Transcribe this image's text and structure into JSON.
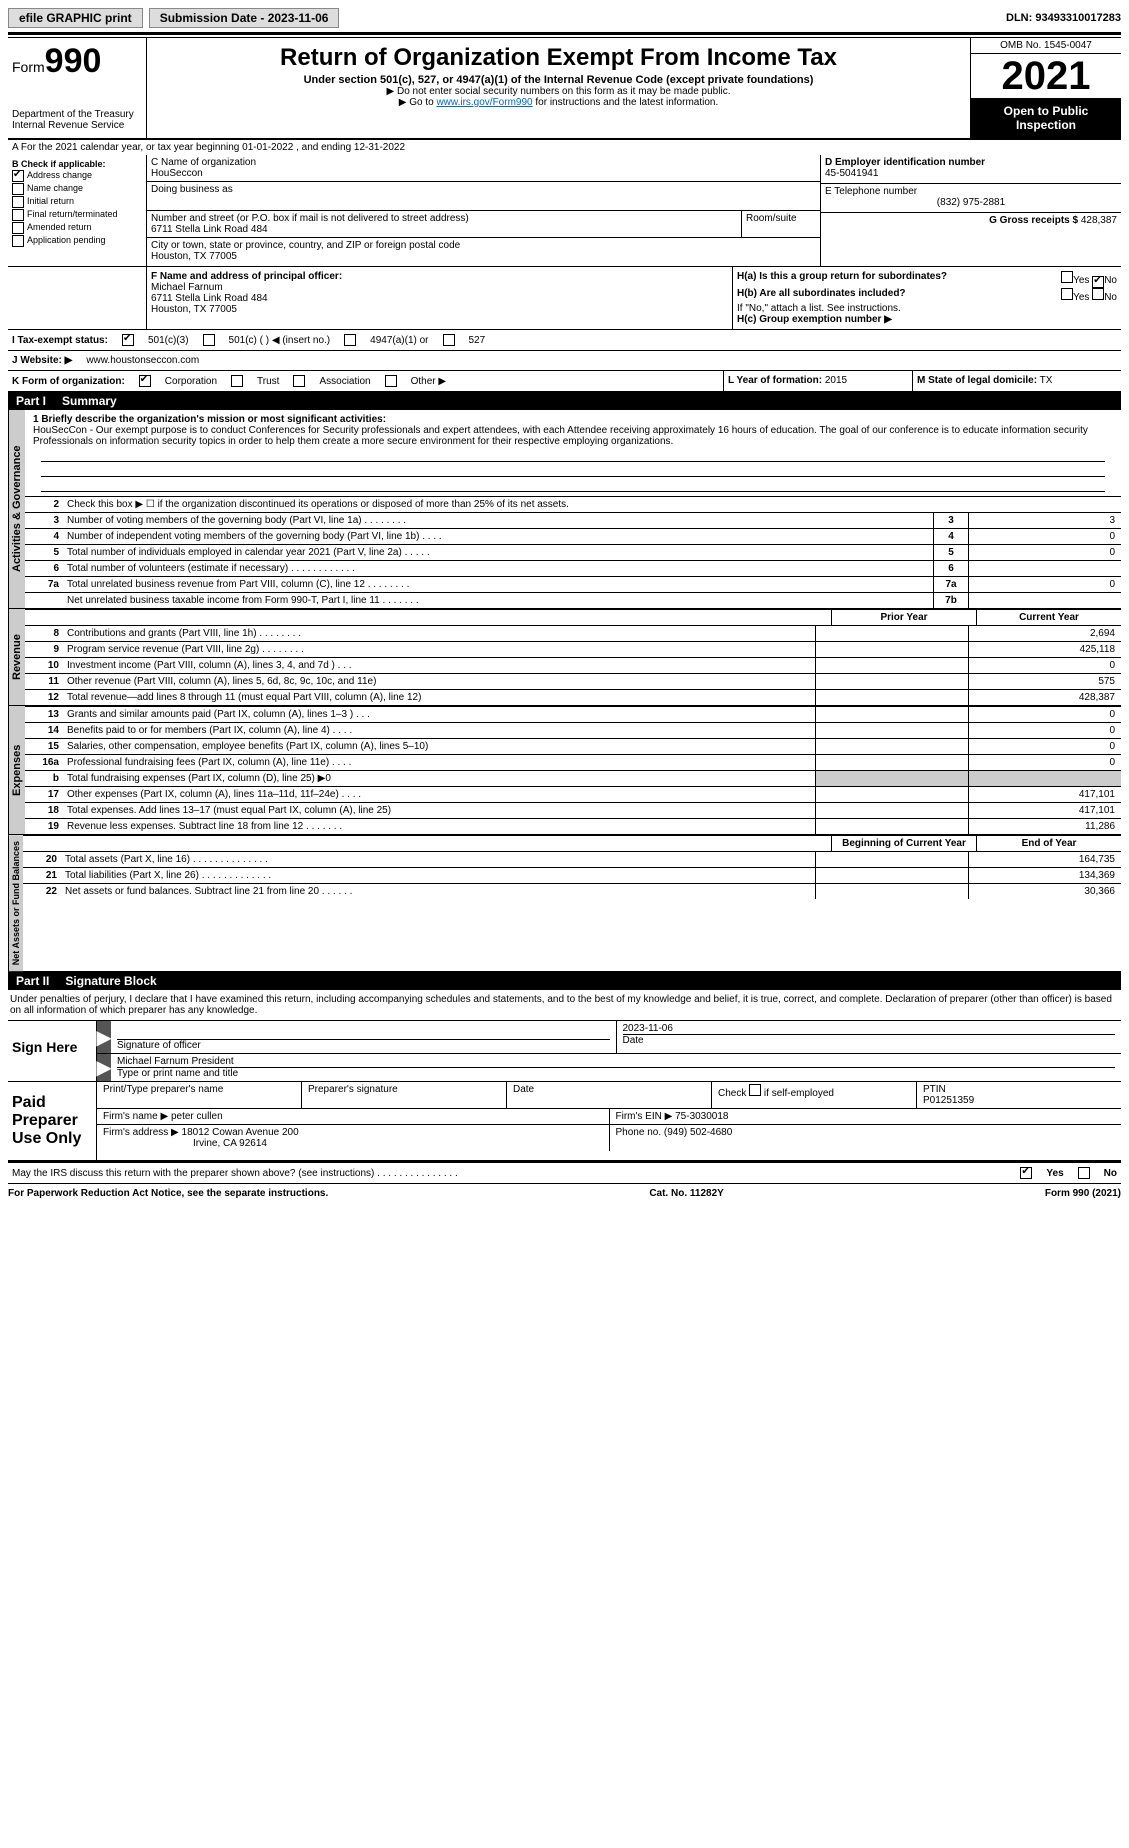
{
  "topbar": {
    "efile": "efile GRAPHIC print",
    "submission_label": "Submission Date - 2023-11-06",
    "dln_label": "DLN: 93493310017283"
  },
  "header": {
    "form_word": "Form",
    "form_num": "990",
    "dept": "Department of the Treasury",
    "irs": "Internal Revenue Service",
    "title": "Return of Organization Exempt From Income Tax",
    "subtitle": "Under section 501(c), 527, or 4947(a)(1) of the Internal Revenue Code (except private foundations)",
    "note1": "▶ Do not enter social security numbers on this form as it may be made public.",
    "note2_pre": "▶ Go to ",
    "note2_link": "www.irs.gov/Form990",
    "note2_post": " for instructions and the latest information.",
    "omb": "OMB No. 1545-0047",
    "year": "2021",
    "open": "Open to Public Inspection"
  },
  "section_a": "A   For the 2021 calendar year, or tax year beginning 01-01-2022    , and ending 12-31-2022",
  "box_b": {
    "label": "B Check if applicable:",
    "items": [
      "Address change",
      "Name change",
      "Initial return",
      "Final return/terminated",
      "Amended return",
      "Application pending"
    ],
    "checked_idx": 0
  },
  "box_c": {
    "label": "C Name of organization",
    "name": "HouSeccon",
    "dba_label": "Doing business as",
    "addr_label": "Number and street (or P.O. box if mail is not delivered to street address)",
    "room_label": "Room/suite",
    "addr": "6711 Stella Link Road 484",
    "city_label": "City or town, state or province, country, and ZIP or foreign postal code",
    "city": "Houston, TX  77005"
  },
  "box_d": {
    "label": "D Employer identification number",
    "val": "45-5041941"
  },
  "box_e": {
    "label": "E Telephone number",
    "val": "(832) 975-2881"
  },
  "box_g": {
    "label": "G Gross receipts $",
    "val": "428,387"
  },
  "box_f": {
    "label": "F  Name and address of principal officer:",
    "name": "Michael Farnum",
    "addr1": "6711 Stella Link Road 484",
    "addr2": "Houston, TX  77005"
  },
  "box_h": {
    "a_label": "H(a)  Is this a group return for subordinates?",
    "a_yes": "Yes",
    "a_no": "No",
    "b_label": "H(b)  Are all subordinates included?",
    "b_yes": "Yes",
    "b_no": "No",
    "b_note": "If \"No,\" attach a list. See instructions.",
    "c_label": "H(c)  Group exemption number ▶"
  },
  "box_i": {
    "label": "I    Tax-exempt status:",
    "o1": "501(c)(3)",
    "o2": "501(c) (   ) ◀ (insert no.)",
    "o3": "4947(a)(1) or",
    "o4": "527"
  },
  "box_j": {
    "label": "J    Website: ▶",
    "val": "www.houstonseccon.com"
  },
  "box_k": {
    "label": "K Form of organization:",
    "o1": "Corporation",
    "o2": "Trust",
    "o3": "Association",
    "o4": "Other ▶"
  },
  "box_l": {
    "label": "L Year of formation:",
    "val": "2015"
  },
  "box_m": {
    "label": "M State of legal domicile:",
    "val": "TX"
  },
  "part1": {
    "num": "Part I",
    "title": "Summary"
  },
  "mission": {
    "label": "1  Briefly describe the organization's mission or most significant activities:",
    "text": "HouSecCon - Our exempt purpose is to conduct Conferences for Security professionals and expert attendees, with each Attendee receiving approximately 16 hours of education. The goal of our conference is to educate information security Professionals on information security topics in order to help them create a more secure environment for their respective employing organizations."
  },
  "line2": "Check this box ▶ ☐  if the organization discontinued its operations or disposed of more than 25% of its net assets.",
  "gov_lines": [
    {
      "n": "3",
      "t": "Number of voting members of the governing body (Part VI, line 1a)  .   .   .   .   .   .   .   .",
      "b": "3",
      "v": "3"
    },
    {
      "n": "4",
      "t": "Number of independent voting members of the governing body (Part VI, line 1b)   .   .   .   .",
      "b": "4",
      "v": "0"
    },
    {
      "n": "5",
      "t": "Total number of individuals employed in calendar year 2021 (Part V, line 2a)   .   .   .   .   .",
      "b": "5",
      "v": "0"
    },
    {
      "n": "6",
      "t": "Total number of volunteers (estimate if necessary)    .   .   .   .   .   .   .   .   .   .   .   .",
      "b": "6",
      "v": ""
    },
    {
      "n": "7a",
      "t": "Total unrelated business revenue from Part VIII, column (C), line 12  .   .   .   .   .   .   .   .",
      "b": "7a",
      "v": "0"
    },
    {
      "n": "",
      "t": "Net unrelated business taxable income from Form 990-T, Part I, line 11   .   .   .   .   .   .   .",
      "b": "7b",
      "v": ""
    }
  ],
  "col_hdr": {
    "prior": "Prior Year",
    "current": "Current Year"
  },
  "rev_lines": [
    {
      "n": "8",
      "t": "Contributions and grants (Part VIII, line 1h)   .   .   .   .   .   .   .   .",
      "p": "",
      "c": "2,694"
    },
    {
      "n": "9",
      "t": "Program service revenue (Part VIII, line 2g)   .   .   .   .   .   .   .   .",
      "p": "",
      "c": "425,118"
    },
    {
      "n": "10",
      "t": "Investment income (Part VIII, column (A), lines 3, 4, and 7d )   .   .   .",
      "p": "",
      "c": "0"
    },
    {
      "n": "11",
      "t": "Other revenue (Part VIII, column (A), lines 5, 6d, 8c, 9c, 10c, and 11e)",
      "p": "",
      "c": "575"
    },
    {
      "n": "12",
      "t": "Total revenue—add lines 8 through 11 (must equal Part VIII, column (A), line 12)",
      "p": "",
      "c": "428,387"
    }
  ],
  "exp_lines": [
    {
      "n": "13",
      "t": "Grants and similar amounts paid (Part IX, column (A), lines 1–3 )   .   .   .",
      "p": "",
      "c": "0"
    },
    {
      "n": "14",
      "t": "Benefits paid to or for members (Part IX, column (A), line 4)   .   .   .   .",
      "p": "",
      "c": "0"
    },
    {
      "n": "15",
      "t": "Salaries, other compensation, employee benefits (Part IX, column (A), lines 5–10)",
      "p": "",
      "c": "0"
    },
    {
      "n": "16a",
      "t": "Professional fundraising fees (Part IX, column (A), line 11e)   .   .   .   .",
      "p": "",
      "c": "0"
    },
    {
      "n": "b",
      "t": "Total fundraising expenses (Part IX, column (D), line 25) ▶0",
      "p": "shade",
      "c": "shade"
    },
    {
      "n": "17",
      "t": "Other expenses (Part IX, column (A), lines 11a–11d, 11f–24e)   .   .   .   .",
      "p": "",
      "c": "417,101"
    },
    {
      "n": "18",
      "t": "Total expenses. Add lines 13–17 (must equal Part IX, column (A), line 25)",
      "p": "",
      "c": "417,101"
    },
    {
      "n": "19",
      "t": "Revenue less expenses. Subtract line 18 from line 12   .   .   .   .   .   .   .",
      "p": "",
      "c": "11,286"
    }
  ],
  "net_hdr": {
    "begin": "Beginning of Current Year",
    "end": "End of Year"
  },
  "net_lines": [
    {
      "n": "20",
      "t": "Total assets (Part X, line 16)  .   .   .   .   .   .   .   .   .   .   .   .   .   .",
      "p": "",
      "c": "164,735"
    },
    {
      "n": "21",
      "t": "Total liabilities (Part X, line 26)   .   .   .   .   .   .   .   .   .   .   .   .   .",
      "p": "",
      "c": "134,369"
    },
    {
      "n": "22",
      "t": "Net assets or fund balances. Subtract line 21 from line 20   .   .   .   .   .   .",
      "p": "",
      "c": "30,366"
    }
  ],
  "vtabs": {
    "gov": "Activities & Governance",
    "rev": "Revenue",
    "exp": "Expenses",
    "net": "Net Assets or Fund Balances"
  },
  "part2": {
    "num": "Part II",
    "title": "Signature Block"
  },
  "penalty": "Under penalties of perjury, I declare that I have examined this return, including accompanying schedules and statements, and to the best of my knowledge and belief, it is true, correct, and complete. Declaration of preparer (other than officer) is based on all information of which preparer has any knowledge.",
  "sign": {
    "here": "Sign Here",
    "sig_label": "Signature of officer",
    "date": "2023-11-06",
    "date_label": "Date",
    "name": "Michael Farnum  President",
    "name_label": "Type or print name and title"
  },
  "paid": {
    "label": "Paid Preparer Use Only",
    "h1": "Print/Type preparer's name",
    "h2": "Preparer's signature",
    "h3": "Date",
    "h4_pre": "Check",
    "h4_post": "if self-employed",
    "h5": "PTIN",
    "ptin": "P01251359",
    "firm_label": "Firm's name    ▶",
    "firm": "peter cullen",
    "ein_label": "Firm's EIN ▶",
    "ein": "75-3030018",
    "addr_label": "Firm's address ▶",
    "addr1": "18012 Cowan Avenue 200",
    "addr2": "Irvine, CA  92614",
    "phone_label": "Phone no.",
    "phone": "(949) 502-4680"
  },
  "discuss": {
    "text": "May the IRS discuss this return with the preparer shown above? (see instructions)   .   .   .   .   .   .   .   .   .   .   .   .   .   .   .",
    "yes": "Yes",
    "no": "No"
  },
  "footer": {
    "left": "For Paperwork Reduction Act Notice, see the separate instructions.",
    "mid": "Cat. No. 11282Y",
    "right": "Form 990 (2021)"
  }
}
